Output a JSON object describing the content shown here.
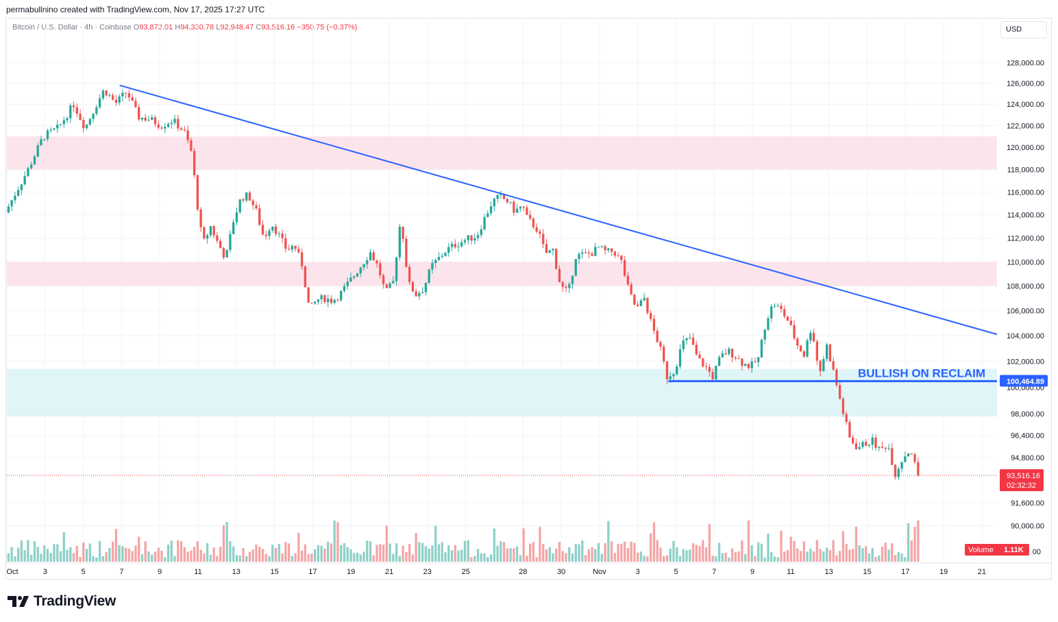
{
  "header": {
    "credit": "permabullnino created with TradingView.com, Nov 17, 2025 17:27 UTC"
  },
  "legend": {
    "symbol": "Bitcoin / U.S. Dollar · 4h · Coinbase",
    "o_label": "O",
    "o": "93,872.01",
    "h_label": "H",
    "h": "94,330.78",
    "l_label": "L",
    "l": "92,948.47",
    "c_label": "C",
    "c": "93,516.16",
    "change": "−350.75 (−0.37%)"
  },
  "currency": "USD",
  "colors": {
    "up": "#26a69a",
    "down": "#ef5350",
    "trendline": "#2962ff",
    "level": "#2962ff",
    "red_zone": "#fce4ec",
    "blue_zone": "#e0f5f8",
    "vol_up": "#8fd0c8",
    "vol_down": "#f5a5a5"
  },
  "chart_data": {
    "type": "candlestick",
    "interval": "4h",
    "x_tick_labels": [
      "Oct",
      "3",
      "5",
      "7",
      "9",
      "11",
      "13",
      "15",
      "17",
      "19",
      "21",
      "23",
      "25",
      "28",
      "30",
      "Nov",
      "3",
      "5",
      "7",
      "9",
      "11",
      "13",
      "15",
      "17",
      "19",
      "21"
    ],
    "y_axis": {
      "scale": "log",
      "tick_labels": [
        "128,000.00",
        "126,000.00",
        "124,000.00",
        "122,000.00",
        "120,000.00",
        "118,000.00",
        "116,000.00",
        "114,000.00",
        "112,000.00",
        "110,000.00",
        "108,000.00",
        "106,000.00",
        "104,000.00",
        "102,000.00",
        "100,000.00",
        "98,000.00",
        "96,400.00",
        "94,800.00",
        "91,600.00",
        "90,000.00"
      ],
      "ticks": [
        128000,
        126000,
        124000,
        122000,
        120000,
        118000,
        116000,
        114000,
        112000,
        110000,
        108000,
        106000,
        104000,
        102000,
        100000,
        98000,
        96400,
        94800,
        91600,
        90000
      ]
    },
    "zones": [
      {
        "color": "pink",
        "from": 118000,
        "to": 121000
      },
      {
        "color": "pink",
        "from": 108000,
        "to": 110000
      },
      {
        "color": "cyan",
        "from": 97800,
        "to": 101400
      }
    ],
    "trendline": {
      "from": {
        "date": "Oct 6",
        "price": 125800
      },
      "to": {
        "date": "Nov 21",
        "price": 104100
      }
    },
    "level_line": {
      "price": 100464.89,
      "label": "BULLISH ON RECLAIM",
      "price_label": "100,464.89"
    },
    "last_price": {
      "price": 93516.16,
      "label": "93,516.16",
      "countdown": "02:32:32"
    },
    "volume_label": "Volume",
    "volume_value": "1.11K",
    "close_path": [
      [
        0,
        114200
      ],
      [
        3,
        118000
      ],
      [
        5,
        121000
      ],
      [
        7,
        121800
      ],
      [
        9,
        124000
      ],
      [
        10.5,
        121800
      ],
      [
        12,
        124000
      ],
      [
        13,
        125400
      ],
      [
        14.5,
        124100
      ],
      [
        16,
        125200
      ],
      [
        17.5,
        122800
      ],
      [
        19,
        122600
      ],
      [
        20.5,
        122000
      ],
      [
        22,
        122500
      ],
      [
        23.5,
        121500
      ],
      [
        24.5,
        119500
      ],
      [
        25.5,
        113500
      ],
      [
        26,
        111500
      ],
      [
        27,
        113000
      ],
      [
        28,
        111500
      ],
      [
        29,
        110300
      ],
      [
        30,
        113500
      ],
      [
        31,
        115500
      ],
      [
        32,
        115700
      ],
      [
        33,
        114300
      ],
      [
        34,
        112000
      ],
      [
        35,
        113300
      ],
      [
        36,
        112200
      ],
      [
        37,
        111000
      ],
      [
        38,
        111400
      ],
      [
        39,
        109800
      ],
      [
        40,
        106000
      ],
      [
        41,
        106900
      ],
      [
        42,
        107000
      ],
      [
        43,
        106800
      ],
      [
        44,
        107300
      ],
      [
        46,
        109000
      ],
      [
        48,
        110800
      ],
      [
        49,
        109600
      ],
      [
        50,
        107400
      ],
      [
        51,
        108300
      ],
      [
        52,
        113800
      ],
      [
        53,
        108200
      ],
      [
        54,
        107300
      ],
      [
        55,
        107800
      ],
      [
        56,
        109600
      ],
      [
        57,
        110300
      ],
      [
        58,
        111000
      ],
      [
        59,
        111400
      ],
      [
        61,
        112000
      ],
      [
        62,
        112200
      ],
      [
        63,
        113700
      ],
      [
        64,
        115100
      ],
      [
        65,
        115600
      ],
      [
        66,
        115200
      ],
      [
        67,
        114300
      ],
      [
        68,
        114800
      ],
      [
        68.5,
        113800
      ],
      [
        70,
        112700
      ],
      [
        71,
        110700
      ],
      [
        72,
        111000
      ],
      [
        73,
        108000
      ],
      [
        74,
        107400
      ],
      [
        75,
        110500
      ],
      [
        77,
        110700
      ],
      [
        78,
        111200
      ],
      [
        79,
        110800
      ],
      [
        80,
        110900
      ],
      [
        81,
        110000
      ],
      [
        82,
        107500
      ],
      [
        83,
        106100
      ],
      [
        84,
        107000
      ],
      [
        85,
        104800
      ],
      [
        86,
        103200
      ],
      [
        87,
        100800
      ],
      [
        88,
        101300
      ],
      [
        89,
        103400
      ],
      [
        90,
        103800
      ],
      [
        91,
        102200
      ],
      [
        92,
        101600
      ],
      [
        93,
        100800
      ],
      [
        94,
        102300
      ],
      [
        95,
        102800
      ],
      [
        96,
        102400
      ],
      [
        97,
        101800
      ],
      [
        98,
        101600
      ],
      [
        99,
        102200
      ],
      [
        100,
        105200
      ],
      [
        101,
        106600
      ],
      [
        102,
        106000
      ],
      [
        103,
        105100
      ],
      [
        104,
        103400
      ],
      [
        105,
        102500
      ],
      [
        106,
        104800
      ],
      [
        107,
        101000
      ],
      [
        108,
        103200
      ],
      [
        109,
        100900
      ],
      [
        110,
        98400
      ],
      [
        111,
        96200
      ],
      [
        112,
        95500
      ],
      [
        113,
        95800
      ],
      [
        114,
        96000
      ],
      [
        115,
        95300
      ],
      [
        116,
        95800
      ],
      [
        117,
        93600
      ],
      [
        118,
        94800
      ],
      [
        119,
        95400
      ],
      [
        120,
        93500
      ]
    ]
  }
}
